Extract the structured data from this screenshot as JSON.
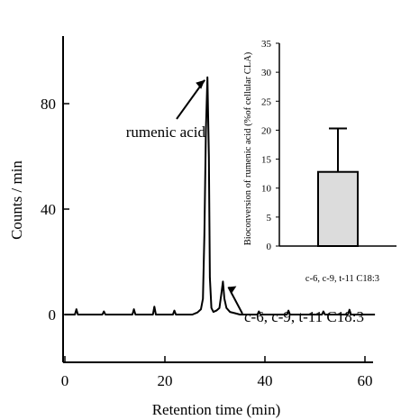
{
  "chart_data": [
    {
      "type": "line",
      "xlabel": "Retention time (min)",
      "ylabel": "Counts / min",
      "xlim": [
        0,
        62
      ],
      "ylim": [
        -2,
        105
      ],
      "x_ticks": [
        0,
        20,
        40,
        60
      ],
      "y_ticks": [
        0,
        40,
        80
      ],
      "grid": false,
      "annotations": [
        {
          "text": "rumenic acid",
          "points_to": [
            28.5,
            90
          ]
        },
        {
          "text": "c-6, c-9, t-11 C18:3",
          "points_to": [
            31.6,
            12.5
          ]
        }
      ],
      "series": [
        {
          "x": [
            0,
            2,
            2.3,
            2.6,
            5,
            7.5,
            7.8,
            8.1,
            10,
            12,
            13.5,
            13.8,
            14.1,
            16,
            17.6,
            17.9,
            18.2,
            20,
            21.6,
            21.9,
            22.2,
            24,
            25.5,
            26.5,
            27.2,
            27.6,
            27.9,
            28.2,
            28.5,
            28.8,
            29.0,
            29.3,
            29.7,
            30.3,
            30.9,
            31.3,
            31.6,
            31.9,
            32.3,
            33,
            34,
            35,
            37,
            38.5,
            38.8,
            39.1,
            42,
            44.4,
            44.7,
            45,
            48,
            51.4,
            51.7,
            52,
            55,
            56.6,
            56.9,
            57.2,
            60,
            62
          ],
          "y": [
            0,
            0,
            2,
            0,
            0,
            0,
            1.2,
            0,
            0,
            0,
            0,
            2,
            0,
            0,
            0,
            3,
            0,
            0,
            0,
            1.5,
            0,
            0,
            0,
            0.8,
            2,
            6,
            30,
            70,
            90,
            60,
            14,
            2.5,
            1,
            1.5,
            2.5,
            8,
            12.5,
            6,
            2.5,
            1,
            0.5,
            0,
            0,
            0,
            1.2,
            0,
            0,
            0,
            1.5,
            0,
            0,
            0,
            1.2,
            0,
            0,
            0,
            1.8,
            0,
            0,
            0
          ]
        }
      ]
    },
    {
      "type": "bar",
      "ylabel": "Bioconversion of rumenic acid (%of cellular CLA)",
      "ylim": [
        0,
        35
      ],
      "y_ticks": [
        0,
        5,
        10,
        15,
        20,
        25,
        30,
        35
      ],
      "categories": [
        "c-6, c-9, t-11 C18:3"
      ],
      "values": [
        12.8
      ],
      "error_upper": [
        20.3
      ],
      "bar_color": "#dcdcdc",
      "grid": false
    }
  ]
}
